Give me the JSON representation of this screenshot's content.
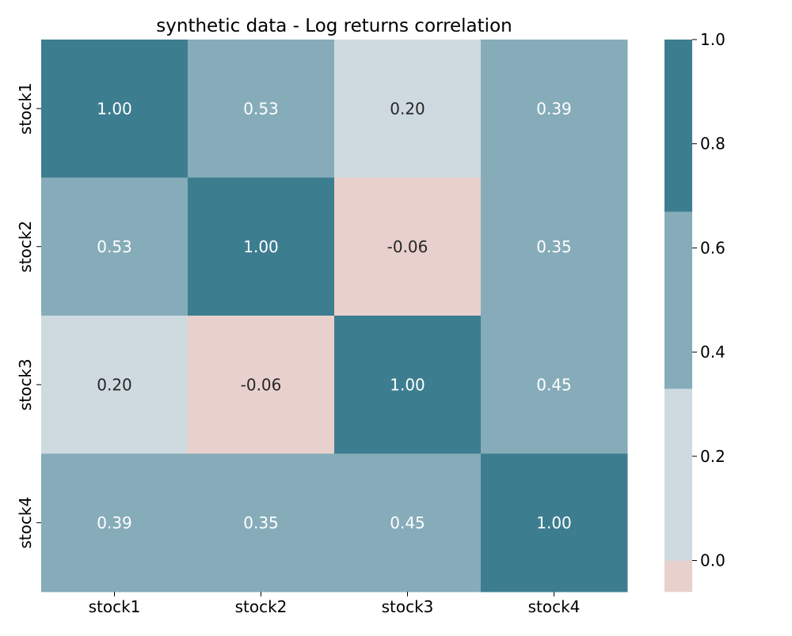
{
  "chart_data": {
    "type": "heatmap",
    "title": "synthetic data - Log returns correlation",
    "x_categories": [
      "stock1",
      "stock2",
      "stock3",
      "stock4"
    ],
    "y_categories": [
      "stock1",
      "stock2",
      "stock3",
      "stock4"
    ],
    "values": [
      [
        1.0,
        0.53,
        0.2,
        0.39
      ],
      [
        0.53,
        1.0,
        -0.06,
        0.35
      ],
      [
        0.2,
        -0.06,
        1.0,
        0.45
      ],
      [
        0.39,
        0.35,
        0.45,
        1.0
      ]
    ],
    "cell_labels": [
      [
        "1.00",
        "0.53",
        "0.20",
        "0.39"
      ],
      [
        "0.53",
        "1.00",
        "-0.06",
        "0.35"
      ],
      [
        "0.20",
        "-0.06",
        "1.00",
        "0.45"
      ],
      [
        "0.39",
        "0.35",
        "0.45",
        "1.00"
      ]
    ],
    "colorbar": {
      "range": [
        -0.06,
        1.0
      ],
      "ticks": [
        0.0,
        0.2,
        0.4,
        0.6,
        0.8,
        1.0
      ],
      "tick_labels": [
        "0.0",
        "0.2",
        "0.4",
        "0.6",
        "0.8",
        "1.0"
      ],
      "bins": [
        {
          "from": -0.06,
          "to": 0.0,
          "color": "#e8d0cc"
        },
        {
          "from": 0.0,
          "to": 0.33,
          "color": "#cfdae0"
        },
        {
          "from": 0.33,
          "to": 0.67,
          "color": "#86acb9"
        },
        {
          "from": 0.67,
          "to": 1.0,
          "color": "#3d7d90"
        }
      ]
    },
    "text_colors": {
      "dark": "#262626",
      "light": "#ffffff"
    },
    "grid": false,
    "legend": "colorbar-right"
  }
}
